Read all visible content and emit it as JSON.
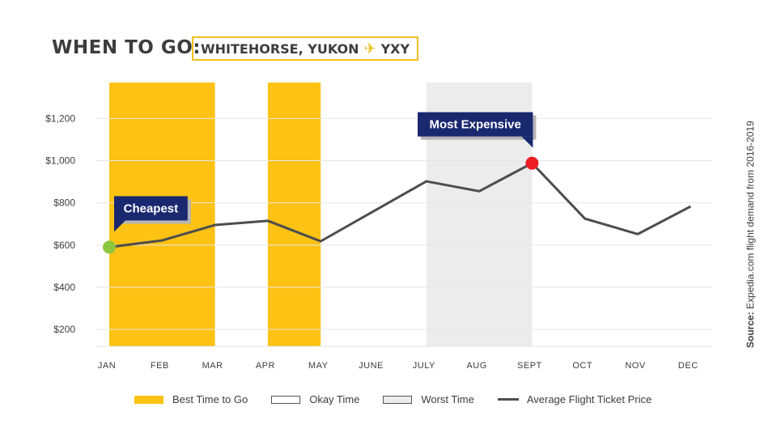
{
  "header": {
    "title": "WHEN TO GO:",
    "subtitle_left": "WHITEHORSE, YUKON",
    "subtitle_right": "YXY",
    "plane_icon": "airplane-icon"
  },
  "source": {
    "label": "Source:",
    "text": " Expedia.com flight demand from 2016-2019"
  },
  "chart_data": {
    "type": "line",
    "categories": [
      "JAN",
      "FEB",
      "MAR",
      "APR",
      "MAY",
      "JUNE",
      "JULY",
      "AUG",
      "SEPT",
      "OCT",
      "NOV",
      "DEC"
    ],
    "series": [
      {
        "name": "Average Flight Ticket Price",
        "values": [
          590,
          622,
          695,
          715,
          618,
          760,
          902,
          855,
          988,
          725,
          652,
          783
        ],
        "color": "#4d4d4d"
      }
    ],
    "y_ticks": [
      "$200",
      "$400",
      "$600",
      "$800",
      "$1,000",
      "$1,200"
    ],
    "y_tick_values": [
      200,
      400,
      600,
      800,
      1000,
      1200
    ],
    "ylim": [
      120,
      1370
    ],
    "grid": true,
    "bands": [
      {
        "from": "JAN",
        "to": "MAR",
        "kind": "best",
        "color": "#fdc213"
      },
      {
        "from": "APR",
        "to": "MAY",
        "kind": "best",
        "color": "#fdc213"
      },
      {
        "from": "JULY",
        "to": "SEPT",
        "kind": "worst",
        "color": "#ececec"
      }
    ],
    "annotations": [
      {
        "text": "Cheapest",
        "category": "JAN",
        "value": 590,
        "marker_color": "#8dc63f"
      },
      {
        "text": "Most Expensive",
        "category": "SEPT",
        "value": 988,
        "marker_color": "#ee1c25"
      }
    ],
    "callout_color": "#1a2870",
    "legend": [
      {
        "label": "Best Time to Go",
        "icon": "best-time-swatch"
      },
      {
        "label": "Okay Time",
        "icon": "okay-time-swatch"
      },
      {
        "label": "Worst Time",
        "icon": "worst-time-swatch"
      },
      {
        "label": "Average Flight Ticket Price",
        "icon": "price-line-swatch"
      }
    ],
    "legend_position": "bottom"
  }
}
